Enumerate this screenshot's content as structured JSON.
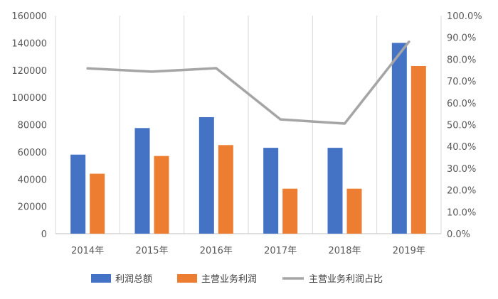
{
  "chart_data": {
    "type": "bar",
    "categories": [
      "2014年",
      "2015年",
      "2016年",
      "2017年",
      "2018年",
      "2019年"
    ],
    "series": [
      {
        "name": "利润总额",
        "kind": "bar",
        "axis": "left",
        "color": "#4472C4",
        "values": [
          58000,
          77500,
          85500,
          63000,
          63000,
          140000
        ]
      },
      {
        "name": "主营业务利润",
        "kind": "bar",
        "axis": "left",
        "color": "#ED7D31",
        "values": [
          44000,
          57000,
          65000,
          33000,
          33000,
          123000
        ]
      },
      {
        "name": "主营业务利润占比",
        "kind": "line",
        "axis": "right",
        "color": "#A5A5A5",
        "values": [
          75.8,
          74.3,
          75.9,
          52.4,
          50.5,
          88.0
        ]
      }
    ],
    "y_left": {
      "min": 0,
      "max": 160000,
      "step": 20000,
      "ticks": [
        "0",
        "20000",
        "40000",
        "60000",
        "80000",
        "100000",
        "120000",
        "140000",
        "160000"
      ]
    },
    "y_right": {
      "min": 0,
      "max": 100,
      "step": 10,
      "ticks": [
        "0.0%",
        "10.0%",
        "20.0%",
        "30.0%",
        "40.0%",
        "50.0%",
        "60.0%",
        "70.0%",
        "80.0%",
        "90.0%",
        "100.0%"
      ]
    },
    "grid": "vertical",
    "legend": "bottom-center",
    "title": "",
    "xlabel": "",
    "ylabel": ""
  }
}
